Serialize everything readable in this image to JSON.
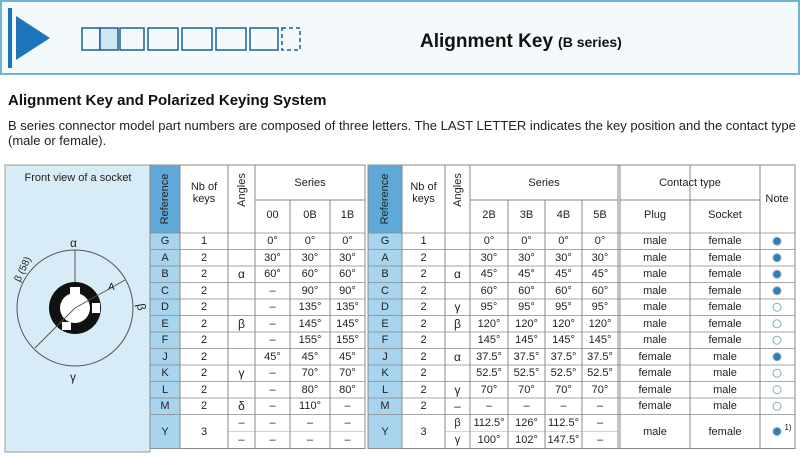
{
  "header": {
    "title": "Alignment Key",
    "subtitle": "(B series)"
  },
  "heading": "Alignment Key and Polarized Keying System",
  "description": "B series connector model part numbers are composed of three letters. The LAST LETTER indicates the key position and the contact type (male or female).",
  "diagram": {
    "title": "Front view of a socket",
    "labels": [
      "α",
      "β (58)",
      "A",
      "β",
      "γ"
    ]
  },
  "left_table": {
    "headers": {
      "reference": "Reference",
      "keys": "Nb of keys",
      "angles": "Angles",
      "series": "Series",
      "columns": [
        "00",
        "0B",
        "1B"
      ]
    },
    "rows": [
      {
        "reference": "G",
        "keys": "1",
        "values": [
          "0°",
          "0°",
          "0°"
        ]
      },
      {
        "reference": "A",
        "keys": "2",
        "values": [
          "30°",
          "30°",
          "30°"
        ]
      },
      {
        "reference": "B",
        "keys": "2",
        "angle": "α",
        "values": [
          "60°",
          "60°",
          "60°"
        ]
      },
      {
        "reference": "C",
        "keys": "2",
        "values": [
          "–",
          "90°",
          "90°"
        ]
      },
      {
        "reference": "D",
        "keys": "2",
        "values": [
          "–",
          "135°",
          "135°"
        ]
      },
      {
        "reference": "E",
        "keys": "2",
        "angle": "β",
        "values": [
          "–",
          "145°",
          "145°"
        ]
      },
      {
        "reference": "F",
        "keys": "2",
        "values": [
          "–",
          "155°",
          "155°"
        ]
      },
      {
        "reference": "J",
        "keys": "2",
        "values": [
          "45°",
          "45°",
          "45°"
        ]
      },
      {
        "reference": "K",
        "keys": "2",
        "angle": "γ",
        "values": [
          "–",
          "70°",
          "70°"
        ]
      },
      {
        "reference": "L",
        "keys": "2",
        "values": [
          "–",
          "80°",
          "80°"
        ]
      },
      {
        "reference": "M",
        "keys": "2",
        "angle": "δ",
        "values": [
          "–",
          "110°",
          "–"
        ]
      },
      {
        "reference": "Y",
        "keys": "3",
        "angle": [
          "–",
          "–"
        ],
        "values": [
          [
            "–",
            "–",
            "–"
          ],
          [
            "–",
            "–",
            "–"
          ]
        ]
      }
    ]
  },
  "right_table": {
    "headers": {
      "reference": "Reference",
      "keys": "Nb of keys",
      "angles": "Angles",
      "series": "Series",
      "columns": [
        "2B",
        "3B",
        "4B",
        "5B"
      ],
      "contact": "Contact type",
      "plug": "Plug",
      "socket": "Socket",
      "note": "Note"
    },
    "rows": [
      {
        "reference": "G",
        "keys": "1",
        "values": [
          "0°",
          "0°",
          "0°",
          "0°"
        ],
        "plug": "male",
        "socket": "female",
        "note_color": "#2f7fb8"
      },
      {
        "reference": "A",
        "keys": "2",
        "values": [
          "30°",
          "30°",
          "30°",
          "30°"
        ],
        "plug": "male",
        "socket": "female",
        "note_color": "#2f7fb8"
      },
      {
        "reference": "B",
        "keys": "2",
        "angle": "α",
        "values": [
          "45°",
          "45°",
          "45°",
          "45°"
        ],
        "plug": "male",
        "socket": "female",
        "note_color": "#2f7fb8"
      },
      {
        "reference": "C",
        "keys": "2",
        "values": [
          "60°",
          "60°",
          "60°",
          "60°"
        ],
        "plug": "male",
        "socket": "female",
        "note_color": "#2f7fb8"
      },
      {
        "reference": "D",
        "keys": "2",
        "angle": "γ",
        "values": [
          "95°",
          "95°",
          "95°",
          "95°"
        ],
        "plug": "male",
        "socket": "female",
        "note_color": "#ffffff"
      },
      {
        "reference": "E",
        "keys": "2",
        "angle": "β",
        "values": [
          "120°",
          "120°",
          "120°",
          "120°"
        ],
        "plug": "male",
        "socket": "female",
        "note_color": "#ffffff"
      },
      {
        "reference": "F",
        "keys": "2",
        "values": [
          "145°",
          "145°",
          "145°",
          "145°"
        ],
        "plug": "male",
        "socket": "female",
        "note_color": "#ffffff"
      },
      {
        "reference": "J",
        "keys": "2",
        "angle": "α",
        "values": [
          "37.5°",
          "37.5°",
          "37.5°",
          "37.5°"
        ],
        "plug": "female",
        "socket": "male",
        "note_color": "#2f7fb8"
      },
      {
        "reference": "K",
        "keys": "2",
        "values": [
          "52.5°",
          "52.5°",
          "52.5°",
          "52.5°"
        ],
        "plug": "female",
        "socket": "male",
        "note_color": "#ffffff"
      },
      {
        "reference": "L",
        "keys": "2",
        "angle": "γ",
        "values": [
          "70°",
          "70°",
          "70°",
          "70°"
        ],
        "plug": "female",
        "socket": "male",
        "note_color": "#ffffff"
      },
      {
        "reference": "M",
        "keys": "2",
        "angle": "–",
        "values": [
          "–",
          "–",
          "–",
          "–"
        ],
        "plug": "female",
        "socket": "male",
        "note_color": "#ffffff"
      },
      {
        "reference": "Y",
        "keys": "3",
        "angle": [
          "β",
          "γ"
        ],
        "values": [
          [
            "112.5°",
            "126°",
            "112.5°",
            "–"
          ],
          [
            "100°",
            "102°",
            "147.5°",
            "–"
          ]
        ],
        "plug": "male",
        "socket": "female",
        "note_color": "#2f7fb8",
        "note_label": "1)"
      }
    ]
  }
}
